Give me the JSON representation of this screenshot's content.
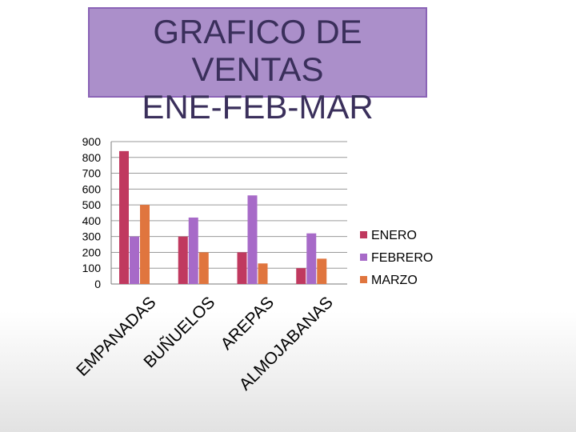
{
  "title_lines": [
    "GRAFICO DE",
    "VENTAS",
    "ENE-FEB-MAR"
  ],
  "chart_data": {
    "type": "bar",
    "title": "GRAFICO DE VENTAS ENE-FEB-MAR",
    "xlabel": "",
    "ylabel": "",
    "categories": [
      "EMPANADAS",
      "BUÑUELOS",
      "AREPAS",
      "ALMOJABANAS"
    ],
    "series": [
      {
        "name": "ENERO",
        "color": "#c0395f",
        "values": [
          840,
          300,
          200,
          100
        ]
      },
      {
        "name": "FEBRERO",
        "color": "#a76ac8",
        "values": [
          300,
          420,
          560,
          320
        ]
      },
      {
        "name": "MARZO",
        "color": "#e0753e",
        "values": [
          500,
          200,
          130,
          160
        ]
      }
    ],
    "ylim": [
      0,
      900
    ],
    "yticks": [
      0,
      100,
      200,
      300,
      400,
      500,
      600,
      700,
      800,
      900
    ],
    "grid": true,
    "legend_position": "right"
  }
}
